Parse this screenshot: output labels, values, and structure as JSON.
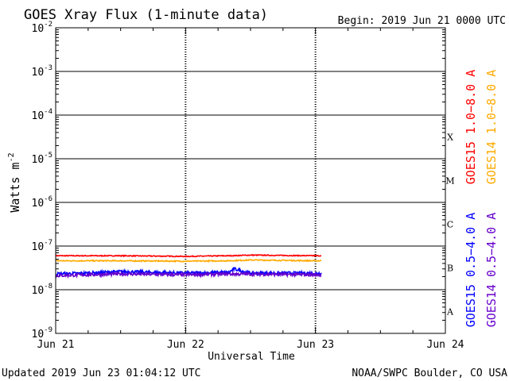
{
  "chart_data": {
    "type": "line",
    "title": "GOES Xray Flux (1-minute data)",
    "begin_label": "Begin:  2019 Jun 21 0000 UTC",
    "xlabel": "Universal Time",
    "ylabel": "Watts m",
    "ylabel_superscript": "-2",
    "y_scale": "log",
    "ylim": [
      1e-09,
      0.01
    ],
    "xlim": [
      "2019-06-21",
      "2019-06-24"
    ],
    "x_ticks": [
      {
        "label": "Jun 21",
        "day": 0
      },
      {
        "label": "Jun 22",
        "day": 1
      },
      {
        "label": "Jun 23",
        "day": 2
      },
      {
        "label": "Jun 24",
        "day": 3
      }
    ],
    "y_ticks": [
      {
        "exp": -2,
        "label": "10",
        "sup": "-2"
      },
      {
        "exp": -3,
        "label": "10",
        "sup": "-3"
      },
      {
        "exp": -4,
        "label": "10",
        "sup": "-4"
      },
      {
        "exp": -5,
        "label": "10",
        "sup": "-5"
      },
      {
        "exp": -6,
        "label": "10",
        "sup": "-6"
      },
      {
        "exp": -7,
        "label": "10",
        "sup": "-7"
      },
      {
        "exp": -8,
        "label": "10",
        "sup": "-8"
      },
      {
        "exp": -9,
        "label": "10",
        "sup": "-9"
      }
    ],
    "flare_classes": [
      {
        "label": "X",
        "exp": -4
      },
      {
        "label": "M",
        "exp": -5
      },
      {
        "label": "C",
        "exp": -6
      },
      {
        "label": "B",
        "exp": -7
      },
      {
        "label": "A",
        "exp": -8
      }
    ],
    "grid": true,
    "legend": [
      {
        "text": "GOES15 1.0−8.0 A",
        "color": "#ff0000"
      },
      {
        "text": "GOES14 1.0−8.0 A",
        "color": "#ffaa00"
      },
      {
        "text": "GOES15 0.5−4.0 A",
        "color": "#0000ff"
      },
      {
        "text": "GOES14 0.5−4.0 A",
        "color": "#6600cc"
      }
    ],
    "data_end": "2019-06-23 01:04",
    "series": [
      {
        "name": "GOES15 1.0−8.0 A",
        "color": "#ff0000",
        "x": [
          "2019-06-21 00:00",
          "2019-06-21 12:00",
          "2019-06-22 00:00",
          "2019-06-22 08:00",
          "2019-06-22 12:00",
          "2019-06-23 00:00",
          "2019-06-23 01:04"
        ],
        "values": [
          6e-08,
          6e-08,
          5.8e-08,
          6e-08,
          6.2e-08,
          6e-08,
          6e-08
        ]
      },
      {
        "name": "GOES14 1.0−8.0 A",
        "color": "#ffaa00",
        "x": [
          "2019-06-21 00:00",
          "2019-06-21 12:00",
          "2019-06-22 00:00",
          "2019-06-22 08:00",
          "2019-06-22 12:00",
          "2019-06-23 00:00",
          "2019-06-23 01:04"
        ],
        "values": [
          4.6e-08,
          4.6e-08,
          4.5e-08,
          4.6e-08,
          4.8e-08,
          4.6e-08,
          4.6e-08
        ]
      },
      {
        "name": "GOES15 0.5−4.0 A",
        "color": "#0000ff",
        "x": [
          "2019-06-21 00:00",
          "2019-06-21 06:00",
          "2019-06-21 12:00",
          "2019-06-22 00:00",
          "2019-06-22 08:00",
          "2019-06-22 09:00",
          "2019-06-22 12:00",
          "2019-06-23 01:04"
        ],
        "values": [
          2.3e-08,
          2.4e-08,
          2.6e-08,
          2.4e-08,
          2.5e-08,
          3e-08,
          2.4e-08,
          2.4e-08
        ]
      },
      {
        "name": "GOES14 0.5−4.0 A",
        "color": "#6600cc",
        "x": [
          "2019-06-21 00:00",
          "2019-06-21 12:00",
          "2019-06-22 00:00",
          "2019-06-22 08:00",
          "2019-06-23 01:04"
        ],
        "values": [
          2.1e-08,
          2.3e-08,
          2.2e-08,
          2.3e-08,
          2.2e-08
        ]
      }
    ]
  },
  "footer": {
    "updated": "Updated 2019 Jun 23 01:04:12 UTC",
    "credit": "NOAA/SWPC Boulder, CO USA"
  }
}
